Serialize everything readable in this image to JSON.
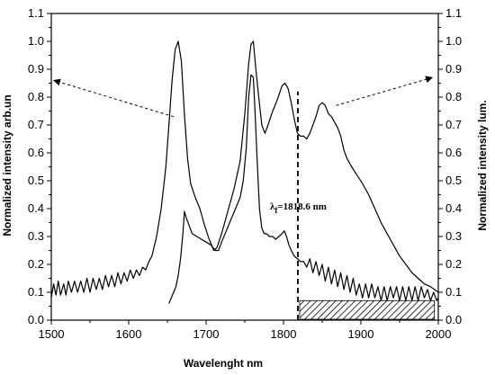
{
  "chart_data": {
    "type": "line",
    "xlabel": "Wavelenght nm",
    "ylabel_left": "Normalized intensity arb.un",
    "ylabel_right": "Normalized intensity lum.",
    "xlim": [
      1500,
      2000
    ],
    "ylim": [
      0.0,
      1.1
    ],
    "x_ticks": [
      1500,
      1600,
      1700,
      1800,
      1900,
      2000
    ],
    "y_ticks": [
      0.0,
      0.1,
      0.2,
      0.3,
      0.4,
      0.5,
      0.6,
      0.7,
      0.8,
      0.9,
      1.0,
      1.1
    ],
    "x_tick_labels": [
      "1500",
      "1600",
      "1700",
      "1800",
      "1900",
      "2000"
    ],
    "y_tick_labels": [
      "0.0",
      "0.1",
      "0.2",
      "0.3",
      "0.4",
      "0.5",
      "0.6",
      "0.7",
      "0.8",
      "0.9",
      "1.0",
      "1.1"
    ],
    "series": [
      {
        "values": [
          [
            1500,
            0.08
          ],
          [
            1503,
            0.13
          ],
          [
            1506,
            0.09
          ],
          [
            1509,
            0.14
          ],
          [
            1512,
            0.09
          ],
          [
            1516,
            0.13
          ],
          [
            1519,
            0.09
          ],
          [
            1522,
            0.14
          ],
          [
            1526,
            0.1
          ],
          [
            1530,
            0.14
          ],
          [
            1534,
            0.1
          ],
          [
            1538,
            0.14
          ],
          [
            1542,
            0.1
          ],
          [
            1546,
            0.15
          ],
          [
            1550,
            0.1
          ],
          [
            1554,
            0.15
          ],
          [
            1558,
            0.11
          ],
          [
            1562,
            0.15
          ],
          [
            1566,
            0.11
          ],
          [
            1570,
            0.16
          ],
          [
            1574,
            0.12
          ],
          [
            1578,
            0.16
          ],
          [
            1582,
            0.12
          ],
          [
            1586,
            0.17
          ],
          [
            1590,
            0.13
          ],
          [
            1594,
            0.17
          ],
          [
            1598,
            0.14
          ],
          [
            1602,
            0.18
          ],
          [
            1606,
            0.15
          ],
          [
            1610,
            0.18
          ],
          [
            1614,
            0.16
          ],
          [
            1618,
            0.19
          ],
          [
            1622,
            0.18
          ],
          [
            1626,
            0.21
          ],
          [
            1630,
            0.23
          ],
          [
            1636,
            0.3
          ],
          [
            1642,
            0.4
          ],
          [
            1648,
            0.55
          ],
          [
            1652,
            0.7
          ],
          [
            1656,
            0.86
          ],
          [
            1660,
            0.97
          ],
          [
            1664,
            1.0
          ],
          [
            1668,
            0.93
          ],
          [
            1672,
            0.74
          ],
          [
            1676,
            0.58
          ],
          [
            1680,
            0.49
          ],
          [
            1686,
            0.44
          ],
          [
            1692,
            0.4
          ],
          [
            1698,
            0.34
          ],
          [
            1704,
            0.29
          ],
          [
            1710,
            0.25
          ],
          [
            1714,
            0.26
          ],
          [
            1720,
            0.31
          ],
          [
            1728,
            0.39
          ],
          [
            1736,
            0.47
          ],
          [
            1744,
            0.57
          ],
          [
            1750,
            0.74
          ],
          [
            1755,
            0.92
          ],
          [
            1758,
            0.99
          ],
          [
            1761,
            1.0
          ],
          [
            1764,
            0.91
          ],
          [
            1768,
            0.8
          ],
          [
            1772,
            0.7
          ],
          [
            1776,
            0.67
          ],
          [
            1780,
            0.7
          ],
          [
            1786,
            0.75
          ],
          [
            1792,
            0.79
          ],
          [
            1798,
            0.84
          ],
          [
            1802,
            0.85
          ],
          [
            1806,
            0.83
          ],
          [
            1810,
            0.78
          ],
          [
            1814,
            0.72
          ],
          [
            1818,
            0.67
          ],
          [
            1822,
            0.66
          ],
          [
            1826,
            0.66
          ],
          [
            1830,
            0.65
          ],
          [
            1834,
            0.67
          ],
          [
            1838,
            0.7
          ],
          [
            1842,
            0.73
          ],
          [
            1846,
            0.77
          ],
          [
            1850,
            0.78
          ],
          [
            1854,
            0.77
          ],
          [
            1858,
            0.74
          ],
          [
            1862,
            0.73
          ],
          [
            1866,
            0.71
          ],
          [
            1870,
            0.69
          ],
          [
            1874,
            0.66
          ],
          [
            1878,
            0.61
          ],
          [
            1882,
            0.58
          ],
          [
            1888,
            0.55
          ],
          [
            1895,
            0.52
          ],
          [
            1902,
            0.49
          ],
          [
            1910,
            0.45
          ],
          [
            1918,
            0.4
          ],
          [
            1926,
            0.35
          ],
          [
            1934,
            0.31
          ],
          [
            1942,
            0.27
          ],
          [
            1950,
            0.23
          ],
          [
            1958,
            0.2
          ],
          [
            1966,
            0.17
          ],
          [
            1974,
            0.15
          ],
          [
            1982,
            0.13
          ],
          [
            1990,
            0.12
          ],
          [
            2000,
            0.1
          ]
        ]
      },
      {
        "values": [
          [
            1652,
            0.06
          ],
          [
            1655,
            0.08
          ],
          [
            1658,
            0.1
          ],
          [
            1661,
            0.12
          ],
          [
            1664,
            0.16
          ],
          [
            1667,
            0.22
          ],
          [
            1670,
            0.31
          ],
          [
            1672,
            0.39
          ],
          [
            1674,
            0.37
          ],
          [
            1678,
            0.34
          ],
          [
            1682,
            0.31
          ],
          [
            1688,
            0.3
          ],
          [
            1694,
            0.29
          ],
          [
            1700,
            0.28
          ],
          [
            1706,
            0.27
          ],
          [
            1712,
            0.25
          ],
          [
            1716,
            0.25
          ],
          [
            1720,
            0.28
          ],
          [
            1726,
            0.32
          ],
          [
            1732,
            0.36
          ],
          [
            1738,
            0.4
          ],
          [
            1744,
            0.44
          ],
          [
            1748,
            0.5
          ],
          [
            1752,
            0.62
          ],
          [
            1755,
            0.8
          ],
          [
            1758,
            0.88
          ],
          [
            1761,
            0.87
          ],
          [
            1763,
            0.76
          ],
          [
            1766,
            0.57
          ],
          [
            1769,
            0.4
          ],
          [
            1772,
            0.33
          ],
          [
            1775,
            0.31
          ],
          [
            1778,
            0.31
          ],
          [
            1782,
            0.3
          ],
          [
            1786,
            0.3
          ],
          [
            1790,
            0.29
          ],
          [
            1794,
            0.3
          ],
          [
            1798,
            0.31
          ],
          [
            1801,
            0.32
          ],
          [
            1804,
            0.3
          ],
          [
            1807,
            0.27
          ],
          [
            1810,
            0.25
          ],
          [
            1814,
            0.23
          ],
          [
            1818,
            0.22
          ],
          [
            1822,
            0.21
          ],
          [
            1826,
            0.21
          ],
          [
            1830,
            0.19
          ],
          [
            1834,
            0.22
          ],
          [
            1838,
            0.17
          ],
          [
            1842,
            0.21
          ],
          [
            1846,
            0.16
          ],
          [
            1850,
            0.2
          ],
          [
            1854,
            0.14
          ],
          [
            1858,
            0.19
          ],
          [
            1862,
            0.13
          ],
          [
            1866,
            0.18
          ],
          [
            1870,
            0.12
          ],
          [
            1874,
            0.17
          ],
          [
            1878,
            0.11
          ],
          [
            1882,
            0.16
          ],
          [
            1886,
            0.1
          ],
          [
            1890,
            0.15
          ],
          [
            1894,
            0.09
          ],
          [
            1898,
            0.13
          ],
          [
            1902,
            0.08
          ],
          [
            1906,
            0.13
          ],
          [
            1910,
            0.08
          ],
          [
            1914,
            0.13
          ],
          [
            1918,
            0.08
          ],
          [
            1922,
            0.12
          ],
          [
            1926,
            0.07
          ],
          [
            1930,
            0.12
          ],
          [
            1934,
            0.07
          ],
          [
            1938,
            0.12
          ],
          [
            1942,
            0.08
          ],
          [
            1946,
            0.12
          ],
          [
            1950,
            0.07
          ],
          [
            1954,
            0.12
          ],
          [
            1958,
            0.07
          ],
          [
            1962,
            0.12
          ],
          [
            1966,
            0.07
          ],
          [
            1970,
            0.12
          ],
          [
            1974,
            0.07
          ],
          [
            1978,
            0.12
          ],
          [
            1982,
            0.08
          ],
          [
            1986,
            0.11
          ],
          [
            1990,
            0.07
          ],
          [
            1994,
            0.1
          ],
          [
            1998,
            0.07
          ],
          [
            2000,
            0.08
          ]
        ]
      }
    ],
    "annotations": [
      {
        "text_symbol": "λ",
        "text_subscript": "f",
        "text_main": "=1818.6 nm",
        "x": 1818.6,
        "y": 0.41
      }
    ],
    "vline": {
      "x": 1818.6,
      "y0": 0.0,
      "y1": 0.82
    },
    "hatched_region": {
      "x0": 1818.6,
      "x1": 1995,
      "y0": 0.0,
      "y1": 0.07
    },
    "arrows": [
      {
        "from": [
          1658,
          0.73
        ],
        "to": [
          1500,
          0.86
        ]
      },
      {
        "from": [
          1868,
          0.77
        ],
        "to": [
          1992,
          0.87
        ]
      }
    ]
  }
}
